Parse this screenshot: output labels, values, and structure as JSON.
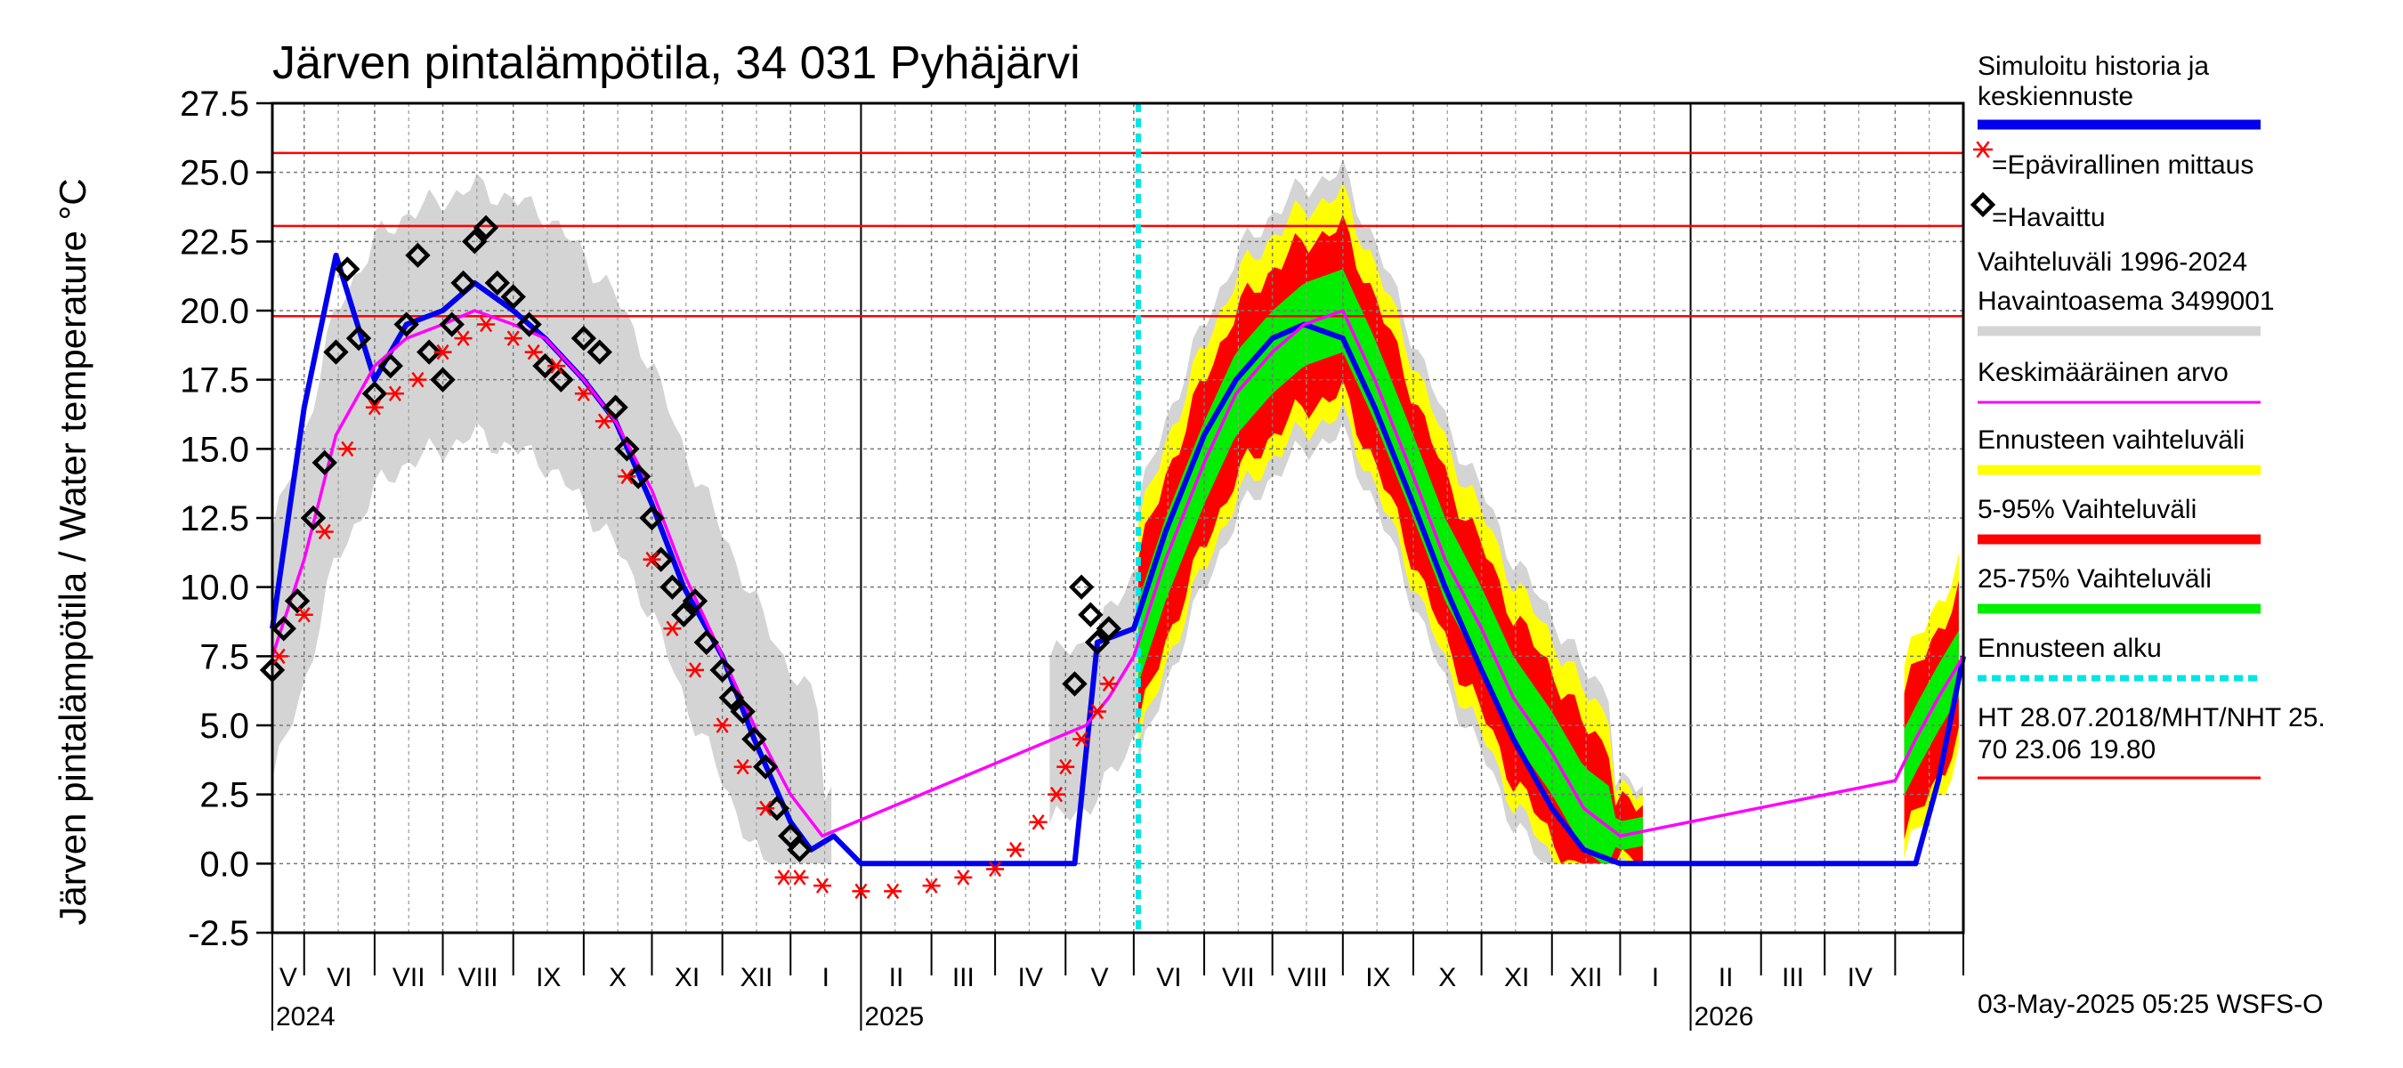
{
  "chart_data": {
    "type": "line",
    "title": "Järven pintalämpötila, 34 031 Pyhäjärvi",
    "ylabel": "Järven pintalämpötila / Water temperature °C",
    "xlabel": "",
    "ylim": [
      -2.5,
      27.5
    ],
    "yticks": [
      "27.5",
      "25.0",
      "22.5",
      "20.0",
      "17.5",
      "15.0",
      "12.5",
      "10.0",
      "7.5",
      "5.0",
      "2.5",
      "0.0",
      "-2.5"
    ],
    "x_range": [
      "2024-04-17",
      "2026-05-01"
    ],
    "months": [
      "V",
      "VI",
      "VII",
      "VIII",
      "IX",
      "X",
      "XI",
      "XII",
      "I",
      "II",
      "III",
      "IV",
      "V",
      "VI",
      "VII",
      "VIII",
      "IX",
      "X",
      "XI",
      "XII",
      "I",
      "II",
      "III",
      "IV"
    ],
    "years": [
      "2024",
      "2025",
      "2026"
    ],
    "forecast_start": "2025-05-03",
    "reference_lines": [
      {
        "label": "HT 28.07.2018",
        "value": 25.7
      },
      {
        "label": "MHT",
        "value": 23.06
      },
      {
        "label": "NHT",
        "value": 19.8
      }
    ],
    "series": [
      {
        "name": "Simuloitu historia ja keskiennuste",
        "color": "#0000ee",
        "x": [
          "2024-04-17",
          "2024-05-01",
          "2024-05-15",
          "2024-06-01",
          "2024-06-15",
          "2024-07-01",
          "2024-07-15",
          "2024-08-01",
          "2024-08-15",
          "2024-09-01",
          "2024-09-15",
          "2024-10-01",
          "2024-10-15",
          "2024-11-01",
          "2024-11-15",
          "2024-12-01",
          "2024-12-10",
          "2024-12-20",
          "2025-01-01",
          "2025-02-01",
          "2025-03-01",
          "2025-04-01",
          "2025-04-05",
          "2025-04-15",
          "2025-05-01",
          "2025-05-15",
          "2025-06-01",
          "2025-06-15",
          "2025-07-01",
          "2025-07-15",
          "2025-08-01",
          "2025-08-15",
          "2025-09-01",
          "2025-09-15",
          "2025-10-01",
          "2025-10-15",
          "2025-11-01",
          "2025-11-15",
          "2025-12-01",
          "2026-01-01",
          "2026-02-01",
          "2026-03-01",
          "2026-04-01",
          "2026-04-10",
          "2026-04-20",
          "2026-05-01"
        ],
        "values": [
          8.5,
          16.5,
          22.0,
          17.5,
          19.5,
          20.0,
          21.0,
          20.0,
          19.0,
          17.5,
          16.0,
          13.0,
          10.0,
          7.5,
          4.5,
          1.5,
          0.5,
          1.0,
          0.0,
          0.0,
          0.0,
          0.0,
          0.0,
          8.0,
          8.5,
          12.0,
          15.5,
          17.5,
          19.0,
          19.5,
          19.0,
          16.5,
          13.0,
          10.0,
          7.0,
          4.5,
          2.0,
          0.5,
          0.0,
          0.0,
          0.0,
          0.0,
          0.0,
          0.0,
          3.0,
          7.5
        ]
      },
      {
        "name": "Keskimääräinen arvo",
        "color": "#ff00ff",
        "x": [
          "2024-04-17",
          "2024-05-01",
          "2024-05-15",
          "2024-06-01",
          "2024-06-15",
          "2024-07-01",
          "2024-07-15",
          "2024-08-01",
          "2024-08-15",
          "2024-09-01",
          "2024-09-15",
          "2024-10-01",
          "2024-10-15",
          "2024-11-01",
          "2024-11-15",
          "2024-12-01",
          "2024-12-15",
          "2025-04-10",
          "2025-04-20",
          "2025-05-01",
          "2025-05-15",
          "2025-06-01",
          "2025-06-15",
          "2025-07-01",
          "2025-07-15",
          "2025-08-01",
          "2025-08-15",
          "2025-09-01",
          "2025-09-15",
          "2025-10-01",
          "2025-10-15",
          "2025-11-01",
          "2025-11-15",
          "2025-12-01",
          "2026-04-01",
          "2026-04-10",
          "2026-04-20",
          "2026-05-01"
        ],
        "values": [
          7.5,
          11.0,
          15.5,
          18.0,
          19.0,
          19.5,
          20.0,
          19.5,
          19.0,
          17.5,
          16.0,
          13.5,
          10.5,
          7.5,
          5.0,
          2.5,
          1.0,
          5.0,
          6.0,
          7.5,
          11.0,
          14.5,
          17.0,
          18.5,
          19.5,
          20.0,
          17.5,
          14.0,
          11.0,
          8.5,
          6.0,
          4.0,
          2.0,
          1.0,
          3.0,
          4.5,
          6.0,
          7.5
        ]
      }
    ],
    "markers": [
      {
        "name": "Havaittu",
        "marker": "diamond",
        "x": [
          "2024-04-17",
          "2024-04-22",
          "2024-04-28",
          "2024-05-05",
          "2024-05-10",
          "2024-05-15",
          "2024-05-20",
          "2024-05-25",
          "2024-06-01",
          "2024-06-08",
          "2024-06-15",
          "2024-06-20",
          "2024-06-25",
          "2024-07-01",
          "2024-07-05",
          "2024-07-10",
          "2024-07-15",
          "2024-07-20",
          "2024-07-25",
          "2024-08-01",
          "2024-08-08",
          "2024-08-15",
          "2024-08-22",
          "2024-09-01",
          "2024-09-08",
          "2024-09-15",
          "2024-09-20",
          "2024-09-25",
          "2024-10-01",
          "2024-10-05",
          "2024-10-10",
          "2024-10-15",
          "2024-10-20",
          "2024-10-25",
          "2024-11-01",
          "2024-11-05",
          "2024-11-10",
          "2024-11-15",
          "2024-11-20",
          "2024-11-25",
          "2024-12-01",
          "2024-12-05",
          "2025-04-05",
          "2025-04-08",
          "2025-04-12",
          "2025-04-15",
          "2025-04-20"
        ],
        "values": [
          7.0,
          8.5,
          9.5,
          12.5,
          14.5,
          18.5,
          21.5,
          19.0,
          17.0,
          18.0,
          19.5,
          22.0,
          18.5,
          17.5,
          19.5,
          21.0,
          22.5,
          23.0,
          21.0,
          20.5,
          19.5,
          18.0,
          17.5,
          19.0,
          18.5,
          16.5,
          15.0,
          14.0,
          12.5,
          11.0,
          10.0,
          9.0,
          9.5,
          8.0,
          7.0,
          6.0,
          5.5,
          4.5,
          3.5,
          2.0,
          1.0,
          0.5,
          6.5,
          10.0,
          9.0,
          8.0,
          8.5
        ]
      },
      {
        "name": "Epävirallinen mittaus",
        "marker": "asterisk",
        "x": [
          "2024-04-20",
          "2024-05-01",
          "2024-05-10",
          "2024-05-20",
          "2024-06-01",
          "2024-06-10",
          "2024-06-20",
          "2024-07-01",
          "2024-07-10",
          "2024-07-20",
          "2024-08-01",
          "2024-08-10",
          "2024-08-20",
          "2024-09-01",
          "2024-09-10",
          "2024-09-20",
          "2024-10-01",
          "2024-10-10",
          "2024-10-20",
          "2024-11-01",
          "2024-11-10",
          "2024-11-20",
          "2024-11-28",
          "2024-12-05",
          "2024-12-15",
          "2025-01-01",
          "2025-01-15",
          "2025-02-01",
          "2025-02-15",
          "2025-03-01",
          "2025-03-10",
          "2025-03-20",
          "2025-03-28",
          "2025-04-01",
          "2025-04-08",
          "2025-04-15",
          "2025-04-20"
        ],
        "values": [
          7.5,
          9.0,
          12.0,
          15.0,
          16.5,
          17.0,
          17.5,
          18.5,
          19.0,
          19.5,
          19.0,
          18.5,
          18.0,
          17.0,
          16.0,
          14.0,
          11.0,
          8.5,
          7.0,
          5.0,
          3.5,
          2.0,
          -0.5,
          -0.5,
          -0.8,
          -1.0,
          -1.0,
          -0.8,
          -0.5,
          -0.2,
          0.5,
          1.5,
          2.5,
          3.5,
          4.5,
          5.5,
          6.5
        ]
      }
    ],
    "bands": [
      {
        "name": "Vaihteluväli 1996-2024 Havaintoasema 3499001",
        "color": "#d4d4d4"
      },
      {
        "name": "Ennusteen vaihteluväli",
        "color": "#ffff00"
      },
      {
        "name": "5-95% Vaihteluväli",
        "color": "#ff0000"
      },
      {
        "name": "25-75% Vaihteluväli",
        "color": "#00ee00"
      }
    ],
    "legend": [
      {
        "label": "Simuloitu historia ja keskiennuste",
        "style": "line",
        "color": "#0000ee"
      },
      {
        "label": "=Epävirallinen mittaus",
        "style": "asterisk",
        "color": "#ff0000"
      },
      {
        "label": "=Havaittu",
        "style": "diamond",
        "color": "#000000"
      },
      {
        "label": "Vaihteluväli 1996-2024 Havaintoasema 3499001",
        "style": "line",
        "color": "#d4d4d4"
      },
      {
        "label": "Keskimääräinen arvo",
        "style": "thinline",
        "color": "#ff00ff"
      },
      {
        "label": "Ennusteen vaihteluväli",
        "style": "line",
        "color": "#ffff00"
      },
      {
        "label": "5-95% Vaihteluväli",
        "style": "line",
        "color": "#ff0000"
      },
      {
        "label": "25-75% Vaihteluväli",
        "style": "line",
        "color": "#00ee00"
      },
      {
        "label": "Ennusteen alku",
        "style": "dotted",
        "color": "#00e5e5"
      },
      {
        "label": "HT 28.07.2018/MHT/NHT 25.70 23.06 19.80",
        "style": "thinline",
        "color": "#ff0000"
      }
    ],
    "legend_placement": "right",
    "grid": true,
    "footer": "03-May-2025 05:25 WSFS-O"
  }
}
